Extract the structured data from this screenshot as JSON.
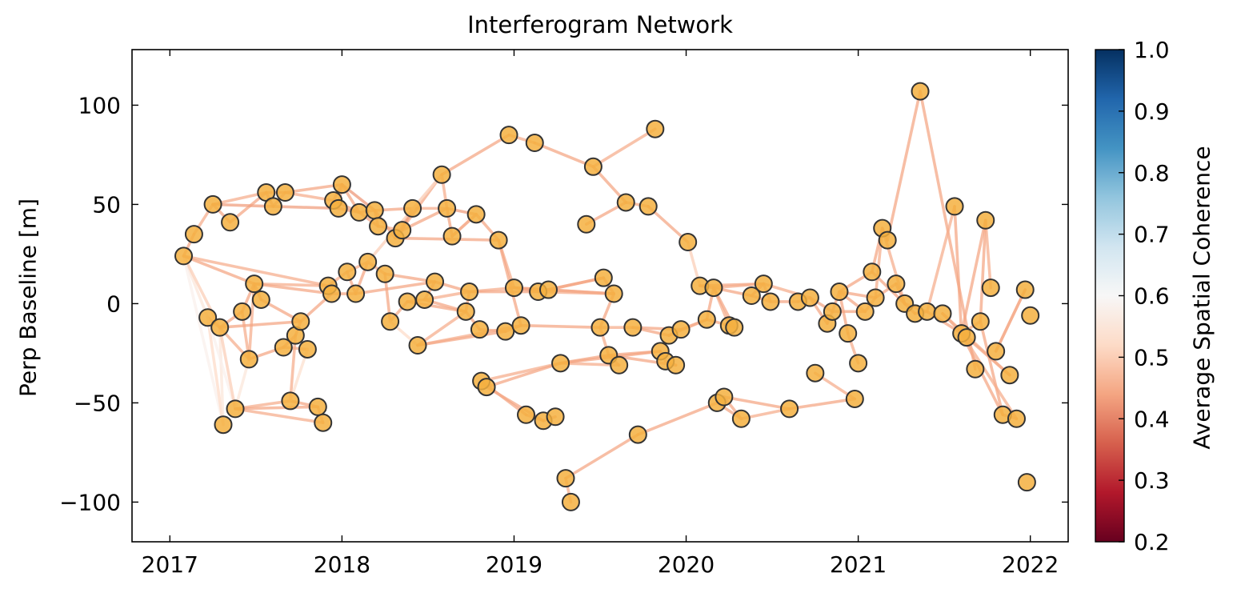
{
  "chart_data": {
    "type": "network-scatter",
    "title": "Interferogram Network",
    "xlabel": "",
    "ylabel": "Perp Baseline [m]",
    "xlim": [
      2016.78,
      2022.22
    ],
    "ylim": [
      -120,
      128
    ],
    "x_ticks": [
      2017,
      2018,
      2019,
      2020,
      2021,
      2022
    ],
    "x_tick_labels": [
      "2017",
      "2018",
      "2019",
      "2020",
      "2021",
      "2022"
    ],
    "y_ticks": [
      -100,
      -50,
      0,
      50,
      100
    ],
    "y_tick_labels": [
      "−100",
      "−50",
      "0",
      "50",
      "100"
    ],
    "colorbar": {
      "label": "Average Spatial Coherence",
      "range": [
        0.2,
        1.0
      ],
      "ticks": [
        0.2,
        0.3,
        0.4,
        0.5,
        0.6,
        0.7,
        0.8,
        0.9,
        1.0
      ],
      "tick_labels": [
        "0.2",
        "0.3",
        "0.4",
        "0.5",
        "0.6",
        "0.7",
        "0.8",
        "0.9",
        "1.0"
      ],
      "colormap": "RdBu"
    },
    "node_color": "#f5b03f",
    "node_edge_color": "#333333",
    "nodes": [
      [
        2017.08,
        24
      ],
      [
        2017.14,
        35
      ],
      [
        2017.25,
        50
      ],
      [
        2017.35,
        41
      ],
      [
        2017.22,
        -7
      ],
      [
        2017.29,
        -12
      ],
      [
        2017.31,
        -61
      ],
      [
        2017.38,
        -53
      ],
      [
        2017.42,
        -4
      ],
      [
        2017.46,
        -28
      ],
      [
        2017.49,
        10
      ],
      [
        2017.53,
        2
      ],
      [
        2017.56,
        56
      ],
      [
        2017.6,
        49
      ],
      [
        2017.66,
        -22
      ],
      [
        2017.67,
        56
      ],
      [
        2017.7,
        -49
      ],
      [
        2017.73,
        -16
      ],
      [
        2017.76,
        -9
      ],
      [
        2017.8,
        -23
      ],
      [
        2017.86,
        -52
      ],
      [
        2017.89,
        -60
      ],
      [
        2017.92,
        9
      ],
      [
        2017.94,
        5
      ],
      [
        2017.95,
        52
      ],
      [
        2017.98,
        48
      ],
      [
        2018.0,
        60
      ],
      [
        2018.03,
        16
      ],
      [
        2018.08,
        5
      ],
      [
        2018.1,
        46
      ],
      [
        2018.15,
        21
      ],
      [
        2018.19,
        47
      ],
      [
        2018.21,
        39
      ],
      [
        2018.25,
        15
      ],
      [
        2018.28,
        -9
      ],
      [
        2018.31,
        33
      ],
      [
        2018.35,
        37
      ],
      [
        2018.38,
        1
      ],
      [
        2018.41,
        48
      ],
      [
        2018.44,
        -21
      ],
      [
        2018.48,
        2
      ],
      [
        2018.54,
        11
      ],
      [
        2018.58,
        65
      ],
      [
        2018.61,
        48
      ],
      [
        2018.64,
        34
      ],
      [
        2018.72,
        -4
      ],
      [
        2018.74,
        6
      ],
      [
        2018.78,
        45
      ],
      [
        2018.8,
        -13
      ],
      [
        2018.81,
        -39
      ],
      [
        2018.84,
        -42
      ],
      [
        2018.91,
        32
      ],
      [
        2018.95,
        -14
      ],
      [
        2018.97,
        85
      ],
      [
        2019.0,
        8
      ],
      [
        2019.04,
        -11
      ],
      [
        2019.07,
        -56
      ],
      [
        2019.12,
        81
      ],
      [
        2019.14,
        6
      ],
      [
        2019.17,
        -59
      ],
      [
        2019.2,
        7
      ],
      [
        2019.24,
        -57
      ],
      [
        2019.27,
        -30
      ],
      [
        2019.3,
        -88
      ],
      [
        2019.33,
        -100
      ],
      [
        2019.42,
        40
      ],
      [
        2019.46,
        69
      ],
      [
        2019.5,
        -12
      ],
      [
        2019.52,
        13
      ],
      [
        2019.55,
        -26
      ],
      [
        2019.58,
        5
      ],
      [
        2019.61,
        -31
      ],
      [
        2019.65,
        51
      ],
      [
        2019.69,
        -12
      ],
      [
        2019.72,
        -66
      ],
      [
        2019.78,
        49
      ],
      [
        2019.82,
        88
      ],
      [
        2019.85,
        -24
      ],
      [
        2019.88,
        -29
      ],
      [
        2019.9,
        -16
      ],
      [
        2019.94,
        -31
      ],
      [
        2019.97,
        -13
      ],
      [
        2020.01,
        31
      ],
      [
        2020.08,
        9
      ],
      [
        2020.12,
        -8
      ],
      [
        2020.16,
        8
      ],
      [
        2020.18,
        -50
      ],
      [
        2020.22,
        -47
      ],
      [
        2020.25,
        -11
      ],
      [
        2020.28,
        -12
      ],
      [
        2020.32,
        -58
      ],
      [
        2020.38,
        4
      ],
      [
        2020.45,
        10
      ],
      [
        2020.49,
        1
      ],
      [
        2020.6,
        -53
      ],
      [
        2020.65,
        1
      ],
      [
        2020.72,
        3
      ],
      [
        2020.75,
        -35
      ],
      [
        2020.82,
        -10
      ],
      [
        2020.85,
        -4
      ],
      [
        2020.89,
        6
      ],
      [
        2020.94,
        -15
      ],
      [
        2020.98,
        -48
      ],
      [
        2021.0,
        -30
      ],
      [
        2021.04,
        -4
      ],
      [
        2021.08,
        16
      ],
      [
        2021.1,
        3
      ],
      [
        2021.14,
        38
      ],
      [
        2021.17,
        32
      ],
      [
        2021.22,
        10
      ],
      [
        2021.27,
        0
      ],
      [
        2021.33,
        -5
      ],
      [
        2021.36,
        107
      ],
      [
        2021.4,
        -4
      ],
      [
        2021.49,
        -5
      ],
      [
        2021.56,
        49
      ],
      [
        2021.6,
        -15
      ],
      [
        2021.63,
        -17
      ],
      [
        2021.68,
        -33
      ],
      [
        2021.71,
        -9
      ],
      [
        2021.74,
        42
      ],
      [
        2021.77,
        8
      ],
      [
        2021.8,
        -24
      ],
      [
        2021.84,
        -56
      ],
      [
        2021.88,
        -36
      ],
      [
        2021.92,
        -58
      ],
      [
        2021.97,
        7
      ],
      [
        2021.98,
        -90
      ],
      [
        2022.0,
        -6
      ]
    ],
    "edges": [
      [
        0,
        1,
        0.44
      ],
      [
        1,
        2,
        0.45
      ],
      [
        2,
        3,
        0.44
      ],
      [
        3,
        12,
        0.44
      ],
      [
        2,
        12,
        0.45
      ],
      [
        2,
        13,
        0.43
      ],
      [
        12,
        13,
        0.44
      ],
      [
        13,
        15,
        0.45
      ],
      [
        12,
        15,
        0.44
      ],
      [
        15,
        24,
        0.45
      ],
      [
        13,
        25,
        0.43
      ],
      [
        15,
        26,
        0.44
      ],
      [
        24,
        26,
        0.44
      ],
      [
        25,
        26,
        0.45
      ],
      [
        24,
        29,
        0.44
      ],
      [
        25,
        29,
        0.43
      ],
      [
        26,
        29,
        0.44
      ],
      [
        26,
        31,
        0.42
      ],
      [
        29,
        31,
        0.44
      ],
      [
        29,
        32,
        0.44
      ],
      [
        31,
        32,
        0.45
      ],
      [
        31,
        35,
        0.44
      ],
      [
        32,
        36,
        0.45
      ],
      [
        35,
        36,
        0.44
      ],
      [
        31,
        38,
        0.44
      ],
      [
        35,
        38,
        0.44
      ],
      [
        36,
        38,
        0.43
      ],
      [
        36,
        43,
        0.44
      ],
      [
        38,
        43,
        0.45
      ],
      [
        35,
        42,
        0.44
      ],
      [
        38,
        42,
        0.58
      ],
      [
        42,
        43,
        0.45
      ],
      [
        43,
        44,
        0.44
      ],
      [
        43,
        47,
        0.43
      ],
      [
        44,
        47,
        0.45
      ],
      [
        35,
        51,
        0.44
      ],
      [
        47,
        51,
        0.44
      ],
      [
        47,
        44,
        0.45
      ],
      [
        0,
        4,
        0.55
      ],
      [
        0,
        5,
        0.5
      ],
      [
        0,
        6,
        0.58
      ],
      [
        0,
        10,
        0.44
      ],
      [
        0,
        22,
        0.45
      ],
      [
        4,
        5,
        0.45
      ],
      [
        4,
        6,
        0.52
      ],
      [
        5,
        6,
        0.55
      ],
      [
        4,
        7,
        0.58
      ],
      [
        5,
        7,
        0.5
      ],
      [
        5,
        8,
        0.44
      ],
      [
        5,
        9,
        0.45
      ],
      [
        8,
        9,
        0.45
      ],
      [
        8,
        10,
        0.44
      ],
      [
        9,
        10,
        0.45
      ],
      [
        10,
        11,
        0.43
      ],
      [
        11,
        18,
        0.44
      ],
      [
        5,
        18,
        0.44
      ],
      [
        9,
        7,
        0.55
      ],
      [
        7,
        16,
        0.45
      ],
      [
        7,
        20,
        0.44
      ],
      [
        7,
        21,
        0.45
      ],
      [
        16,
        20,
        0.44
      ],
      [
        20,
        21,
        0.45
      ],
      [
        14,
        17,
        0.44
      ],
      [
        9,
        14,
        0.44
      ],
      [
        14,
        19,
        0.45
      ],
      [
        17,
        18,
        0.44
      ],
      [
        16,
        17,
        0.45
      ],
      [
        19,
        16,
        0.53
      ],
      [
        18,
        23,
        0.44
      ],
      [
        10,
        22,
        0.45
      ],
      [
        10,
        23,
        0.44
      ],
      [
        22,
        23,
        0.44
      ],
      [
        22,
        27,
        0.45
      ],
      [
        23,
        28,
        0.44
      ],
      [
        27,
        28,
        0.44
      ],
      [
        27,
        30,
        0.45
      ],
      [
        28,
        30,
        0.44
      ],
      [
        30,
        33,
        0.45
      ],
      [
        33,
        41,
        0.44
      ],
      [
        28,
        41,
        0.44
      ],
      [
        30,
        42,
        0.5
      ],
      [
        33,
        34,
        0.44
      ],
      [
        34,
        37,
        0.45
      ],
      [
        37,
        40,
        0.44
      ],
      [
        40,
        41,
        0.44
      ],
      [
        41,
        46,
        0.44
      ],
      [
        40,
        46,
        0.45
      ],
      [
        37,
        45,
        0.44
      ],
      [
        40,
        45,
        0.44
      ],
      [
        34,
        39,
        0.52
      ],
      [
        39,
        45,
        0.45
      ],
      [
        45,
        46,
        0.44
      ],
      [
        46,
        54,
        0.45
      ],
      [
        46,
        58,
        0.44
      ],
      [
        51,
        54,
        0.45
      ],
      [
        51,
        55,
        0.44
      ],
      [
        45,
        48,
        0.44
      ],
      [
        48,
        52,
        0.45
      ],
      [
        52,
        55,
        0.44
      ],
      [
        39,
        52,
        0.44
      ],
      [
        39,
        55,
        0.45
      ],
      [
        54,
        58,
        0.44
      ],
      [
        54,
        60,
        0.44
      ],
      [
        58,
        60,
        0.45
      ],
      [
        60,
        68,
        0.44
      ],
      [
        58,
        68,
        0.44
      ],
      [
        60,
        70,
        0.45
      ],
      [
        68,
        70,
        0.44
      ],
      [
        54,
        70,
        0.44
      ],
      [
        58,
        70,
        0.45
      ],
      [
        42,
        53,
        0.44
      ],
      [
        53,
        57,
        0.45
      ],
      [
        57,
        66,
        0.44
      ],
      [
        66,
        72,
        0.44
      ],
      [
        72,
        75,
        0.45
      ],
      [
        75,
        82,
        0.44
      ],
      [
        66,
        76,
        0.45
      ],
      [
        65,
        72,
        0.44
      ],
      [
        55,
        67,
        0.44
      ],
      [
        67,
        73,
        0.45
      ],
      [
        70,
        67,
        0.44
      ],
      [
        67,
        69,
        0.45
      ],
      [
        69,
        71,
        0.44
      ],
      [
        73,
        79,
        0.44
      ],
      [
        79,
        81,
        0.45
      ],
      [
        81,
        84,
        0.44
      ],
      [
        73,
        81,
        0.44
      ],
      [
        79,
        84,
        0.45
      ],
      [
        69,
        77,
        0.44
      ],
      [
        77,
        78,
        0.44
      ],
      [
        78,
        80,
        0.45
      ],
      [
        69,
        80,
        0.44
      ],
      [
        49,
        50,
        0.44
      ],
      [
        49,
        62,
        0.45
      ],
      [
        50,
        62,
        0.44
      ],
      [
        62,
        69,
        0.44
      ],
      [
        62,
        71,
        0.45
      ],
      [
        62,
        77,
        0.44
      ],
      [
        49,
        56,
        0.44
      ],
      [
        56,
        59,
        0.45
      ],
      [
        59,
        61,
        0.44
      ],
      [
        50,
        59,
        0.44
      ],
      [
        63,
        64,
        0.45
      ],
      [
        63,
        74,
        0.44
      ],
      [
        74,
        86,
        0.44
      ],
      [
        86,
        87,
        0.45
      ],
      [
        87,
        90,
        0.44
      ],
      [
        86,
        90,
        0.44
      ],
      [
        90,
        94,
        0.45
      ],
      [
        87,
        94,
        0.44
      ],
      [
        94,
        102,
        0.44
      ],
      [
        97,
        102,
        0.45
      ],
      [
        82,
        83,
        0.5
      ],
      [
        83,
        85,
        0.44
      ],
      [
        84,
        85,
        0.44
      ],
      [
        85,
        88,
        0.45
      ],
      [
        84,
        88,
        0.44
      ],
      [
        85,
        89,
        0.44
      ],
      [
        88,
        89,
        0.45
      ],
      [
        85,
        91,
        0.44
      ],
      [
        83,
        92,
        0.44
      ],
      [
        85,
        92,
        0.45
      ],
      [
        91,
        92,
        0.44
      ],
      [
        92,
        93,
        0.44
      ],
      [
        91,
        93,
        0.45
      ],
      [
        93,
        95,
        0.44
      ],
      [
        95,
        96,
        0.44
      ],
      [
        92,
        96,
        0.45
      ],
      [
        96,
        99,
        0.44
      ],
      [
        96,
        98,
        0.44
      ],
      [
        98,
        99,
        0.45
      ],
      [
        99,
        100,
        0.44
      ],
      [
        100,
        101,
        0.44
      ],
      [
        101,
        103,
        0.45
      ],
      [
        100,
        104,
        0.44
      ],
      [
        99,
        104,
        0.44
      ],
      [
        104,
        106,
        0.45
      ],
      [
        100,
        106,
        0.44
      ],
      [
        100,
        105,
        0.44
      ],
      [
        106,
        107,
        0.45
      ],
      [
        105,
        107,
        0.44
      ],
      [
        105,
        110,
        0.44
      ],
      [
        107,
        110,
        0.45
      ],
      [
        110,
        111,
        0.44
      ],
      [
        111,
        113,
        0.44
      ],
      [
        110,
        113,
        0.45
      ],
      [
        109,
        106,
        0.44
      ],
      [
        109,
        110,
        0.44
      ],
      [
        108,
        107,
        0.45
      ],
      [
        108,
        112,
        0.44
      ],
      [
        112,
        118,
        0.44
      ],
      [
        113,
        115,
        0.45
      ],
      [
        113,
        116,
        0.44
      ],
      [
        115,
        116,
        0.44
      ],
      [
        116,
        119,
        0.45
      ],
      [
        116,
        120,
        0.44
      ],
      [
        119,
        120,
        0.44
      ],
      [
        120,
        121,
        0.45
      ],
      [
        116,
        123,
        0.44
      ],
      [
        119,
        123,
        0.44
      ],
      [
        116,
        125,
        0.45
      ],
      [
        123,
        125,
        0.44
      ],
      [
        125,
        130,
        0.44
      ],
      [
        125,
        132,
        0.45
      ],
      [
        114,
        117,
        0.44
      ],
      [
        117,
        124,
        0.44
      ],
      [
        114,
        124,
        0.45
      ],
      [
        124,
        132,
        0.44
      ],
      [
        118,
        132,
        0.44
      ],
      [
        130,
        132,
        0.45
      ],
      [
        122,
        126,
        0.44
      ],
      [
        126,
        132,
        0.44
      ],
      [
        126,
        122,
        0.45
      ],
      [
        127,
        132,
        0.44
      ],
      [
        128,
        130,
        0.44
      ],
      [
        128,
        132,
        0.45
      ],
      [
        128,
        129,
        0.44
      ],
      [
        129,
        132,
        0.44
      ],
      [
        131,
        132,
        0.45
      ],
      [
        128,
        131,
        0.44
      ],
      [
        130,
        131,
        0.44
      ],
      [
        130,
        126,
        0.45
      ],
      [
        121,
        132,
        0.44
      ],
      [
        123,
        132,
        0.44
      ]
    ]
  }
}
